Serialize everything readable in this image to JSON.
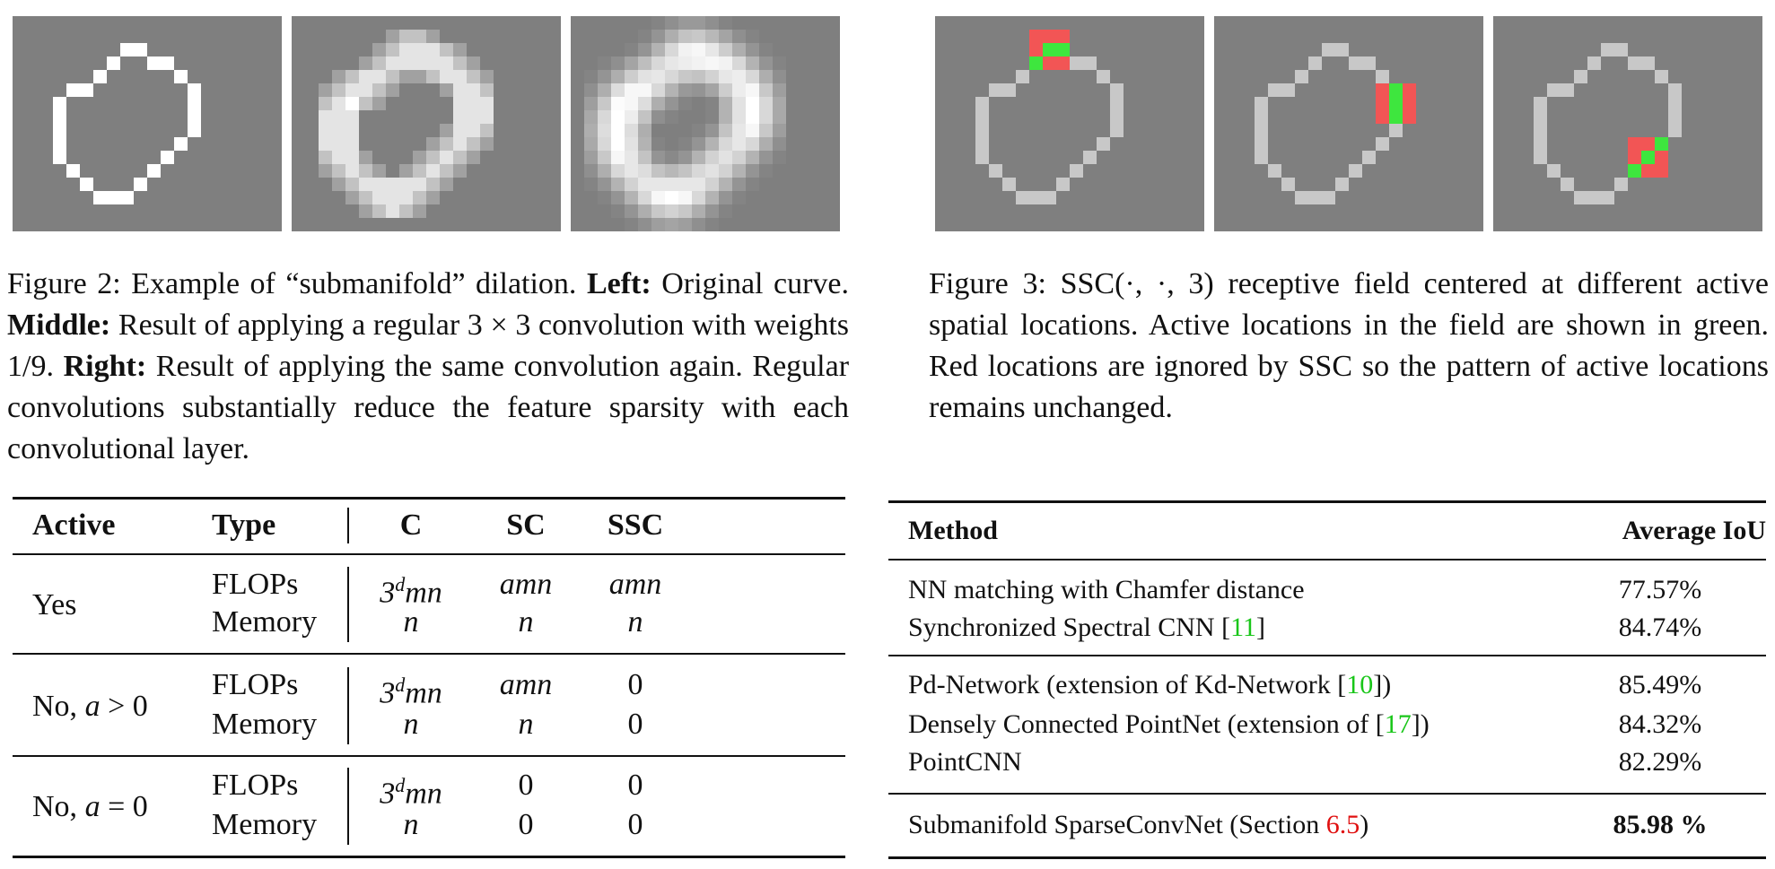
{
  "figure2": {
    "panels": [
      "original-curve",
      "regular-convolution-once",
      "regular-convolution-twice"
    ],
    "caption": {
      "label": "Figure 2:",
      "part1": "Example of “submanifold” dilation.",
      "left_label": "Left:",
      "left_text": "Original curve.",
      "middle_label": "Middle:",
      "middle_text": "Result of applying a regular 3 × 3 convolution with weights 1/9.",
      "right_label": "Right:",
      "right_text": "Result of applying the same convolution again. Regular convolutions substantially reduce the feature sparsity with each convolutional layer."
    }
  },
  "figure3": {
    "panels": [
      "receptive-field-top",
      "receptive-field-right",
      "receptive-field-bottom-right"
    ],
    "caption": {
      "label": "Figure 3:",
      "text": "SSC(·, ·, 3) receptive field centered at different active spatial locations. Active locations in the field are shown in green. Red locations are ignored by SSC so the pattern of active locations remains unchanged."
    },
    "colors": {
      "active": "#3ee63e",
      "ignored": "#f25555",
      "curve": "#c8c8c8",
      "background": "#7f7f7f"
    }
  },
  "cost_table": {
    "headers": [
      "Active",
      "Type",
      "C",
      "SC",
      "SSC"
    ],
    "rows": [
      {
        "active": "Yes",
        "types": [
          "FLOPs",
          "Memory"
        ],
        "c": [
          "3^d mn",
          "n"
        ],
        "sc": [
          "amn",
          "n"
        ],
        "ssc": [
          "amn",
          "n"
        ]
      },
      {
        "active": "No, a > 0",
        "types": [
          "FLOPs",
          "Memory"
        ],
        "c": [
          "3^d mn",
          "n"
        ],
        "sc": [
          "amn",
          "n"
        ],
        "ssc": [
          "0",
          "0"
        ]
      },
      {
        "active": "No, a = 0",
        "types": [
          "FLOPs",
          "Memory"
        ],
        "c": [
          "3^d mn",
          "n"
        ],
        "sc": [
          "0",
          "0"
        ],
        "ssc": [
          "0",
          "0"
        ]
      }
    ]
  },
  "iou_table": {
    "headers": [
      "Method",
      "Average IoU"
    ],
    "groups": [
      [
        {
          "method": "NN matching with Chamfer distance",
          "cite": "",
          "suffix": "",
          "iou": "77.57%"
        },
        {
          "method": "Synchronized Spectral CNN [",
          "cite": "11",
          "suffix": "]",
          "iou": "84.74%"
        }
      ],
      [
        {
          "method": "Pd-Network (extension of Kd-Network [",
          "cite": "10",
          "suffix": "])",
          "iou": "85.49%"
        },
        {
          "method": "Densely Connected PointNet (extension of [",
          "cite": "17",
          "suffix": "])",
          "iou": "84.32%"
        },
        {
          "method": "PointCNN",
          "cite": "",
          "suffix": "",
          "iou": "82.29%"
        }
      ],
      [
        {
          "method": "Submanifold SparseConvNet (Section ",
          "cite": "6.5",
          "suffix": ")",
          "iou": "85.98 %"
        }
      ]
    ]
  }
}
